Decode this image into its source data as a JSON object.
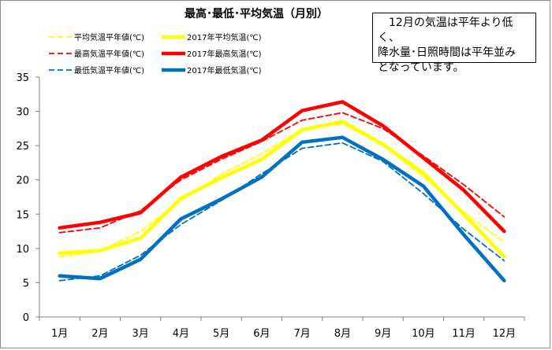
{
  "chart_data": {
    "type": "line",
    "title": "最高･最低･平均気温（月別）",
    "categories": [
      "1月",
      "2月",
      "3月",
      "4月",
      "5月",
      "6月",
      "7月",
      "8月",
      "9月",
      "10月",
      "11月",
      "12月"
    ],
    "ylim": [
      0,
      35
    ],
    "yticks": [
      0,
      5,
      10,
      15,
      20,
      25,
      30,
      35
    ],
    "grid": false,
    "legend_position": "top",
    "series": [
      {
        "name": "平均気温平年値(℃)",
        "color": "#ffff00",
        "dashed": true,
        "values": [
          8.8,
          9.6,
          12.5,
          17.0,
          20.8,
          23.8,
          27.4,
          28.2,
          25.0,
          20.5,
          15.3,
          10.9
        ]
      },
      {
        "name": "2017年平均気温(℃)",
        "color": "#ffff00",
        "dashed": false,
        "values": [
          9.3,
          9.7,
          11.5,
          17.3,
          20.3,
          23.0,
          27.3,
          28.5,
          25.2,
          21.0,
          15.0,
          8.8
        ]
      },
      {
        "name": "最高気温平年値(℃)",
        "color": "#ff0000",
        "dashed": true,
        "values": [
          12.3,
          13.0,
          15.5,
          20.0,
          23.0,
          25.6,
          28.7,
          29.8,
          27.5,
          23.5,
          19.3,
          14.6
        ]
      },
      {
        "name": "2017年最高気温(℃)",
        "color": "#ff0000",
        "dashed": false,
        "values": [
          13.0,
          13.8,
          15.2,
          20.4,
          23.4,
          25.8,
          30.1,
          31.4,
          27.9,
          23.2,
          18.5,
          12.5
        ]
      },
      {
        "name": "最低気温平年値(℃)",
        "color": "#0070c0",
        "dashed": true,
        "values": [
          5.3,
          6.0,
          9.0,
          13.5,
          17.0,
          20.9,
          24.6,
          25.4,
          22.7,
          18.0,
          12.8,
          8.2
        ]
      },
      {
        "name": "2017年最低気温(℃)",
        "color": "#0070c0",
        "dashed": false,
        "values": [
          6.0,
          5.6,
          8.4,
          14.3,
          17.2,
          20.4,
          25.5,
          26.2,
          23.0,
          19.1,
          12.0,
          5.3
        ]
      }
    ],
    "annotation": "　12月の気温は平年より低く、\n降水量･日照時間は平年並み\nとなっています。"
  }
}
